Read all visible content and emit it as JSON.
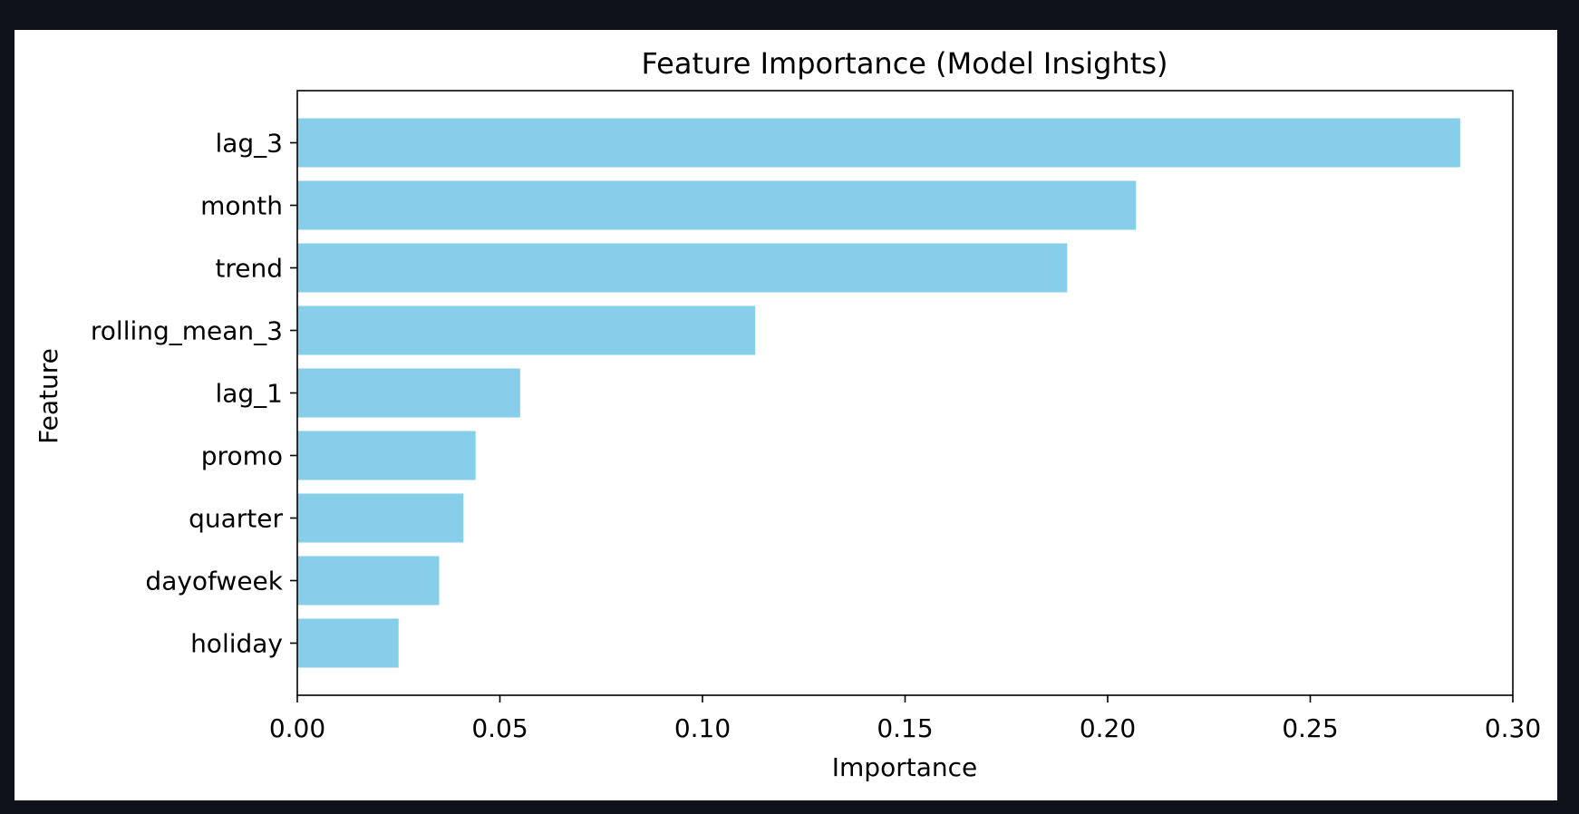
{
  "chart_data": {
    "type": "bar",
    "orientation": "horizontal",
    "title": "Feature Importance (Model Insights)",
    "xlabel": "Importance",
    "ylabel": "Feature",
    "categories": [
      "lag_3",
      "month",
      "trend",
      "rolling_mean_3",
      "lag_1",
      "promo",
      "quarter",
      "dayofweek",
      "holiday"
    ],
    "values": [
      0.287,
      0.207,
      0.19,
      0.113,
      0.055,
      0.044,
      0.041,
      0.035,
      0.025
    ],
    "xlim": [
      0,
      0.3
    ],
    "xticks": [
      "0.00",
      "0.05",
      "0.10",
      "0.15",
      "0.20",
      "0.25",
      "0.30"
    ],
    "grid": false,
    "legend": "none",
    "colors": {
      "bar": "#87ceeb",
      "frame_background": "#0f121a",
      "canvas": "#ffffff"
    }
  }
}
